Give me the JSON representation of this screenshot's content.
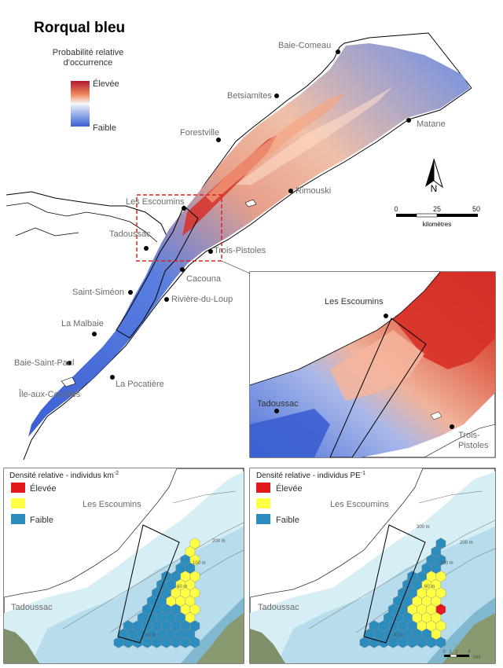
{
  "title": "Rorqual bleu",
  "legend": {
    "heading_line1": "Probabilité relative",
    "heading_line2": "d'occurrence",
    "high": "Élevée",
    "low": "Faible"
  },
  "places": {
    "baie_comeau": "Baie-Comeau",
    "betsiamites": "Betsiamites",
    "matane": "Matane",
    "forestville": "Forestville",
    "rimouski": "Rimouski",
    "les_escoumins": "Les Escoumins",
    "tadoussac": "Tadoussac",
    "trois_pistoles": "Trois-Pistoles",
    "cacouna": "Cacouna",
    "saint_simeon": "Saint-Siméon",
    "riviere_du_loup": "Rivière-du-Loup",
    "la_malbaie": "La Malbaie",
    "baie_saint_paul": "Baie-Saint-Paul",
    "la_pocatiere": "La Pocatière",
    "ile_aux_coudres": "Île-aux-Coudres"
  },
  "inset": {
    "les_escoumins": "Les Escoumins",
    "tadoussac": "Tadoussac",
    "trois_line1": "Trois-",
    "trois_line2": "Pistoles"
  },
  "north": "N",
  "scale": {
    "t0": "0",
    "t1": "25",
    "t2": "50",
    "unit": "kilomètres"
  },
  "panel_left": {
    "title": "Densité relative - individus km",
    "title_sup": "-2",
    "high": "Élevée",
    "mid_place": "Les Escoumins",
    "low": "Faible",
    "tadoussac": "Tadoussac"
  },
  "panel_right": {
    "title": "Densité relative - individus PE",
    "title_sup": "-1",
    "high": "Élevée",
    "mid_place": "Les Escoumins",
    "low": "Faible",
    "tadoussac": "Tadoussac"
  },
  "depths": {
    "d300": "300 m",
    "d200": "200 m",
    "d100": "100 m",
    "d60": "60 m",
    "d20": "20 m"
  },
  "mini_scale": {
    "t0": "0",
    "t1": "1",
    "t2": "2",
    "t3": "4",
    "unit": "MN"
  },
  "colors": {
    "high": "#e31a1c",
    "mid": "#ffff44",
    "low": "#2b8cbe",
    "water_low": "#4a72d8",
    "water_high": "#c8202a"
  }
}
